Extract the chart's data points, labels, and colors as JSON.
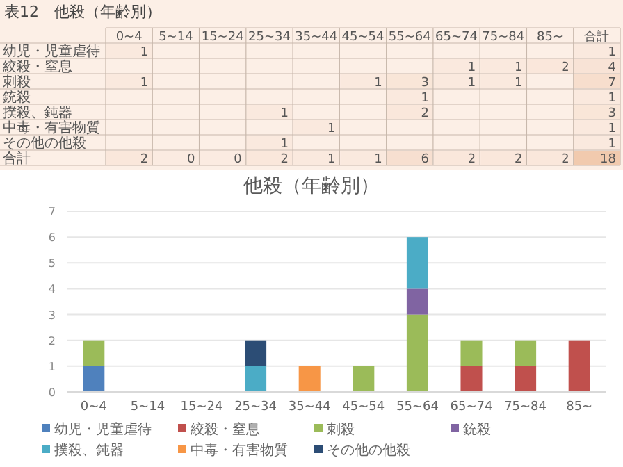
{
  "chart_data": [
    {
      "type": "heatmap",
      "title": "表12　他殺（年齢別）",
      "categories": [
        "0~4",
        "5~14",
        "15~24",
        "25~34",
        "35~44",
        "45~54",
        "55~64",
        "65~74",
        "75~84",
        "85~",
        "合計"
      ],
      "y_categories": [
        "幼児・児童虐待",
        "絞殺・窒息",
        "刺殺",
        "銃殺",
        "撲殺、鈍器",
        "中毒・有害物質",
        "その他の他殺",
        "合計"
      ],
      "cells": [
        [
          1,
          null,
          null,
          null,
          null,
          null,
          null,
          null,
          null,
          null,
          1
        ],
        [
          null,
          null,
          null,
          null,
          null,
          null,
          null,
          1,
          1,
          2,
          4
        ],
        [
          1,
          null,
          null,
          null,
          null,
          1,
          3,
          1,
          1,
          null,
          7
        ],
        [
          null,
          null,
          null,
          null,
          null,
          null,
          1,
          null,
          null,
          null,
          1
        ],
        [
          null,
          null,
          null,
          1,
          null,
          null,
          2,
          null,
          null,
          null,
          3
        ],
        [
          null,
          null,
          null,
          null,
          1,
          null,
          null,
          null,
          null,
          null,
          1
        ],
        [
          null,
          null,
          null,
          1,
          null,
          null,
          null,
          null,
          null,
          null,
          1
        ],
        [
          2,
          0,
          0,
          2,
          1,
          1,
          6,
          2,
          2,
          2,
          18
        ]
      ],
      "cell_labels": [
        [
          "1",
          null,
          null,
          null,
          null,
          null,
          null,
          null,
          null,
          null,
          "1"
        ],
        [
          null,
          null,
          null,
          null,
          null,
          null,
          null,
          "1",
          "1",
          "2",
          "4"
        ],
        [
          "1",
          null,
          null,
          null,
          null,
          "1",
          "3",
          "1",
          "1",
          null,
          "7"
        ],
        [
          null,
          null,
          null,
          null,
          null,
          null,
          "1",
          null,
          null,
          null,
          "1"
        ],
        [
          null,
          null,
          null,
          "1",
          null,
          null,
          "2",
          null,
          null,
          null,
          "3"
        ],
        [
          null,
          null,
          null,
          null,
          "1",
          null,
          null,
          null,
          null,
          null,
          "1"
        ],
        [
          null,
          null,
          null,
          "1",
          null,
          null,
          null,
          null,
          null,
          null,
          "1"
        ],
        [
          "2",
          "0",
          "0",
          "2",
          "1",
          "1",
          "6",
          "2",
          "2",
          "2",
          "18"
        ]
      ]
    },
    {
      "type": "bar",
      "title": "他殺（年齢別）",
      "stacked": true,
      "categories": [
        "0~4",
        "5~14",
        "15~24",
        "25~34",
        "35~44",
        "45~54",
        "55~64",
        "65~74",
        "75~84",
        "85~"
      ],
      "series": [
        {
          "name": "幼児・児童虐待",
          "color": "#4f81bd",
          "values": [
            1,
            0,
            0,
            0,
            0,
            0,
            0,
            0,
            0,
            0
          ]
        },
        {
          "name": "絞殺・窒息",
          "color": "#c0504d",
          "values": [
            0,
            0,
            0,
            0,
            0,
            0,
            0,
            1,
            1,
            2
          ]
        },
        {
          "name": "刺殺",
          "color": "#9bbb59",
          "values": [
            1,
            0,
            0,
            0,
            0,
            1,
            3,
            1,
            1,
            0
          ]
        },
        {
          "name": "銃殺",
          "color": "#8064a2",
          "values": [
            0,
            0,
            0,
            0,
            0,
            0,
            1,
            0,
            0,
            0
          ]
        },
        {
          "name": "撲殺、鈍器",
          "color": "#4bacc6",
          "values": [
            0,
            0,
            0,
            1,
            0,
            0,
            2,
            0,
            0,
            0
          ]
        },
        {
          "name": "中毒・有害物質",
          "color": "#f79646",
          "values": [
            0,
            0,
            0,
            0,
            1,
            0,
            0,
            0,
            0,
            0
          ]
        },
        {
          "name": "その他の他殺",
          "color": "#2c4d75",
          "values": [
            0,
            0,
            0,
            1,
            0,
            0,
            0,
            0,
            0,
            0
          ]
        }
      ],
      "ylim": [
        0,
        7
      ],
      "yticks": [
        0,
        1,
        2,
        3,
        4,
        5,
        6,
        7
      ],
      "grid": "y",
      "legend": "bottom"
    }
  ]
}
